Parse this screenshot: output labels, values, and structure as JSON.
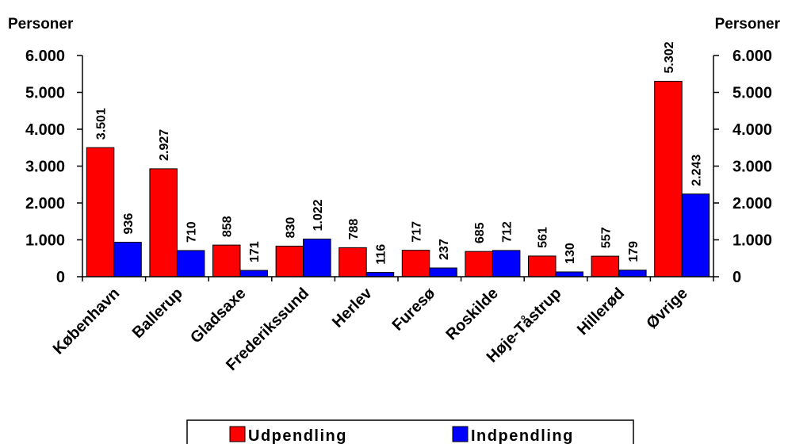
{
  "chart_data": {
    "type": "bar",
    "yaxis_left_title": "Personer",
    "yaxis_right_title": "Personer",
    "ylim": [
      0,
      6000
    ],
    "yticks": [
      0,
      1000,
      2000,
      3000,
      4000,
      5000,
      6000
    ],
    "ytick_labels": [
      "0",
      "1.000",
      "2.000",
      "3.000",
      "4.000",
      "5.000",
      "6.000"
    ],
    "categories": [
      "København",
      "Ballerup",
      "Gladsaxe",
      "Frederikssund",
      "Herlev",
      "Furesø",
      "Roskilde",
      "Høje-Tåstrup",
      "Hillerød",
      "Øvrige"
    ],
    "series": [
      {
        "name": "Udpendling",
        "color": "#ff0000",
        "values": [
          3501,
          2927,
          858,
          830,
          788,
          717,
          685,
          561,
          557,
          5302
        ],
        "labels": [
          "3.501",
          "2.927",
          "858",
          "830",
          "788",
          "717",
          "685",
          "561",
          "557",
          "5.302"
        ]
      },
      {
        "name": "Indpendling",
        "color": "#0000ff",
        "values": [
          936,
          710,
          171,
          1022,
          116,
          237,
          712,
          130,
          179,
          2243
        ],
        "labels": [
          "936",
          "710",
          "171",
          "1.022",
          "116",
          "237",
          "712",
          "130",
          "179",
          "2.243"
        ]
      }
    ],
    "legend_position": "bottom-center",
    "grid": false
  }
}
